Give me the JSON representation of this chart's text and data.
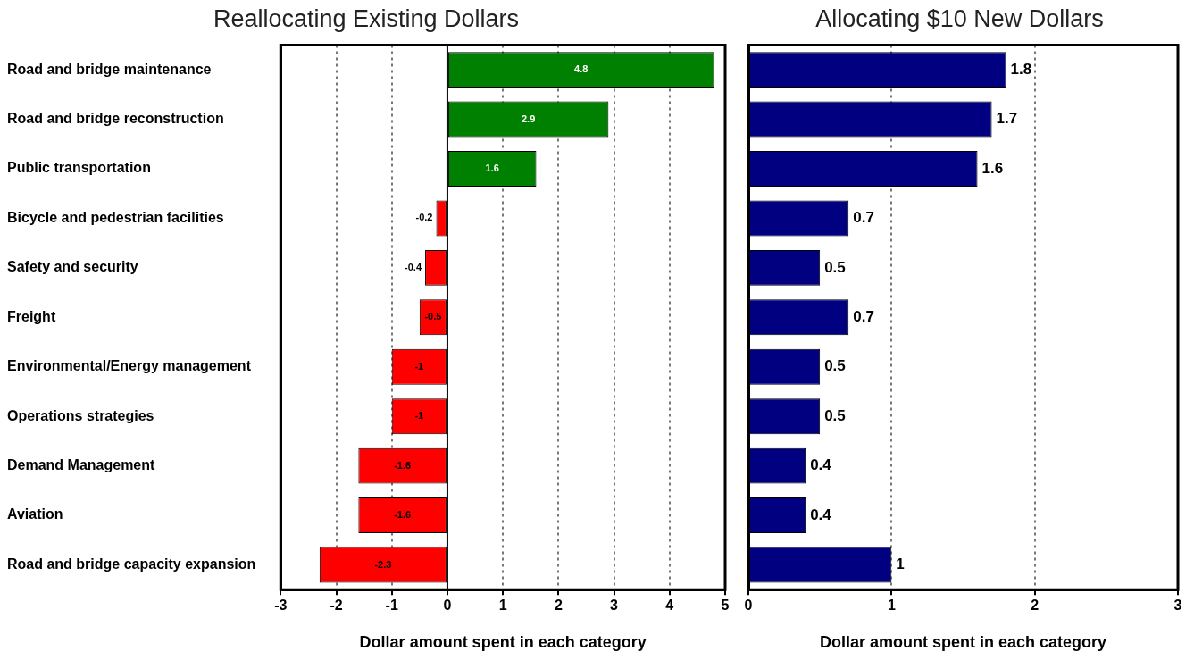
{
  "chart_data": [
    {
      "type": "bar",
      "orientation": "horizontal",
      "title": "Reallocating Existing Dollars",
      "xlabel": "Dollar amount spent in each category",
      "categories": [
        "Road and bridge maintenance",
        "Road and bridge reconstruction",
        "Public transportation",
        "Bicycle and pedestrian facilities",
        "Safety and security",
        "Freight",
        "Environmental/Energy management",
        "Operations strategies",
        "Demand Management",
        "Aviation",
        "Road and bridge capacity expansion"
      ],
      "values": [
        4.8,
        2.9,
        1.6,
        -0.2,
        -0.4,
        -0.5,
        -1,
        -1,
        -1.6,
        -1.6,
        -2.3
      ],
      "colors": [
        "#008000",
        "#008000",
        "#008000",
        "#ff0000",
        "#ff0000",
        "#ff0000",
        "#ff0000",
        "#ff0000",
        "#ff0000",
        "#ff0000",
        "#ff0000"
      ],
      "xlim": [
        -3,
        5
      ],
      "xticks": [
        -3,
        -2,
        -1,
        0,
        1,
        2,
        3,
        4,
        5
      ],
      "grid": "x",
      "data_labels": true,
      "legend": false
    },
    {
      "type": "bar",
      "orientation": "horizontal",
      "title": "Allocating $10 New Dollars",
      "xlabel": "Dollar amount spent in each category",
      "categories": [
        null,
        null,
        null,
        null,
        null,
        null,
        null,
        null,
        null,
        null,
        null
      ],
      "values": [
        1.8,
        1.7,
        1.6,
        0.7,
        0.5,
        0.7,
        0.5,
        0.5,
        0.4,
        0.4,
        1
      ],
      "color": "#000080",
      "xlim": [
        0,
        3
      ],
      "xticks": [
        0,
        1,
        2,
        3
      ],
      "grid": "x",
      "data_labels": true,
      "legend": false,
      "tick_labels": "x"
    }
  ]
}
